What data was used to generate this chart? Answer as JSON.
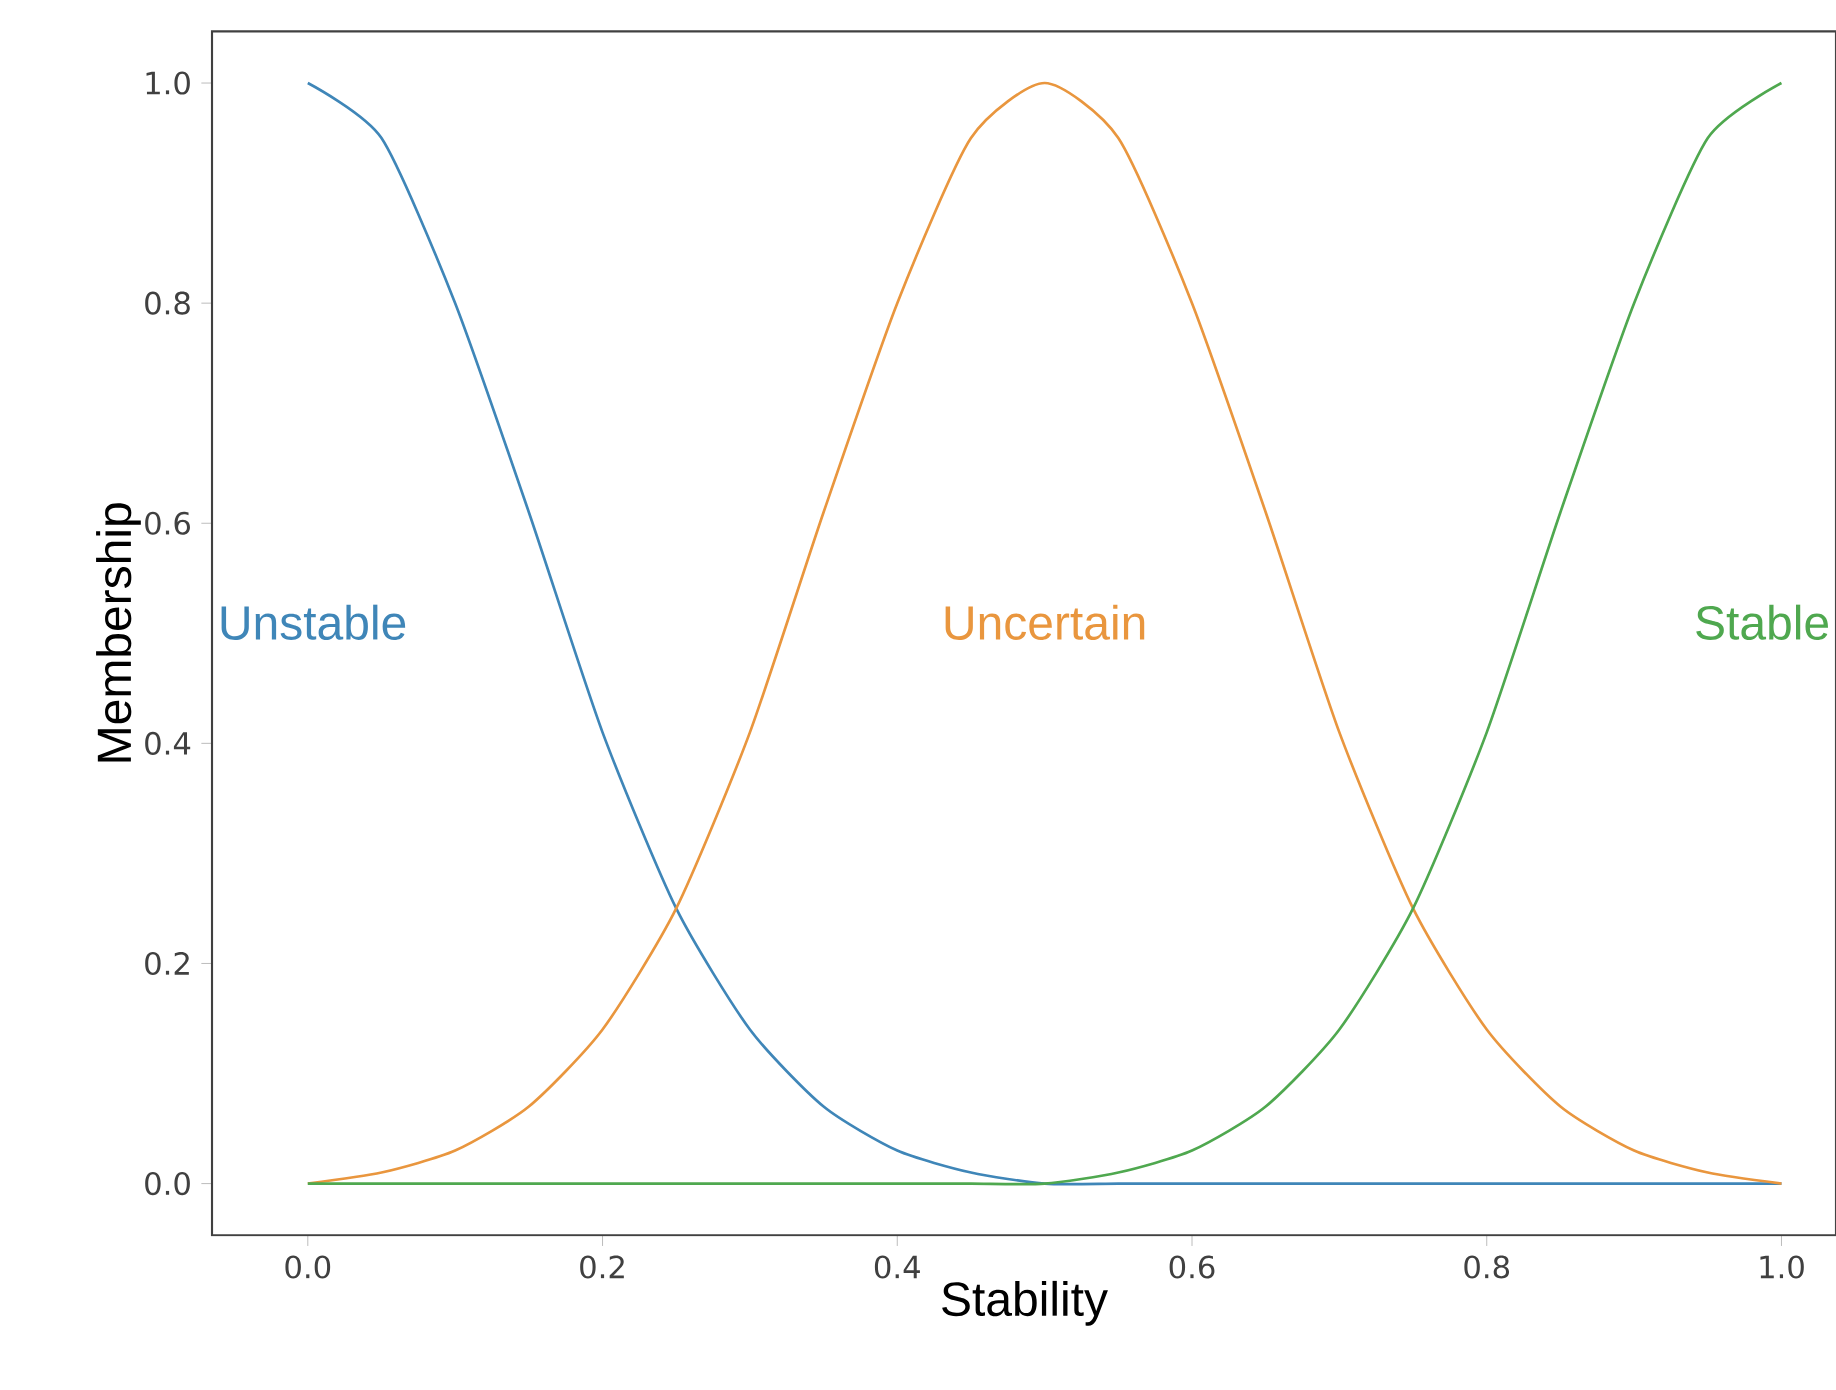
{
  "chart_data": {
    "type": "line",
    "xlabel": "Stability",
    "ylabel": "Membership",
    "x": [
      0,
      0.05,
      0.1,
      0.15,
      0.2,
      0.25,
      0.3,
      0.35,
      0.4,
      0.45,
      0.5,
      0.55,
      0.6,
      0.65,
      0.7,
      0.75,
      0.8,
      0.85,
      0.9,
      0.95,
      1
    ],
    "series": [
      {
        "name": "Unstable",
        "color": "#3f86b8",
        "values": [
          1,
          0.95,
          0.8,
          0.61,
          0.41,
          0.25,
          0.14,
          0.07,
          0.03,
          0.01,
          0,
          0,
          0,
          0,
          0,
          0,
          0,
          0,
          0,
          0,
          0
        ]
      },
      {
        "name": "Uncertain",
        "color": "#e9963e",
        "values": [
          0,
          0.01,
          0.03,
          0.07,
          0.14,
          0.25,
          0.41,
          0.61,
          0.8,
          0.95,
          1,
          0.95,
          0.8,
          0.61,
          0.41,
          0.25,
          0.14,
          0.07,
          0.03,
          0.01,
          0
        ]
      },
      {
        "name": "Stable",
        "color": "#4fa84f",
        "values": [
          0,
          0,
          0,
          0,
          0,
          0,
          0,
          0,
          0,
          0,
          0,
          0.01,
          0.03,
          0.07,
          0.14,
          0.25,
          0.41,
          0.61,
          0.8,
          0.95,
          1
        ]
      }
    ],
    "xlim": [
      -0.065,
      1.037
    ],
    "ylim": [
      -0.047,
      1.047
    ],
    "xticks": [
      {
        "value": 0,
        "label": "0.0"
      },
      {
        "value": 0.2,
        "label": "0.2"
      },
      {
        "value": 0.4,
        "label": "0.4"
      },
      {
        "value": 0.6,
        "label": "0.6"
      },
      {
        "value": 0.8,
        "label": "0.8"
      },
      {
        "value": 1,
        "label": "1.0"
      }
    ],
    "yticks": [
      {
        "value": 0,
        "label": "0.0"
      },
      {
        "value": 0.2,
        "label": "0.2"
      },
      {
        "value": 0.4,
        "label": "0.4"
      },
      {
        "value": 0.6,
        "label": "0.6"
      },
      {
        "value": 0.8,
        "label": "0.8"
      },
      {
        "value": 1,
        "label": "1.0"
      }
    ],
    "grid": false,
    "legend": false,
    "marker": "none",
    "line_style": "solid"
  }
}
